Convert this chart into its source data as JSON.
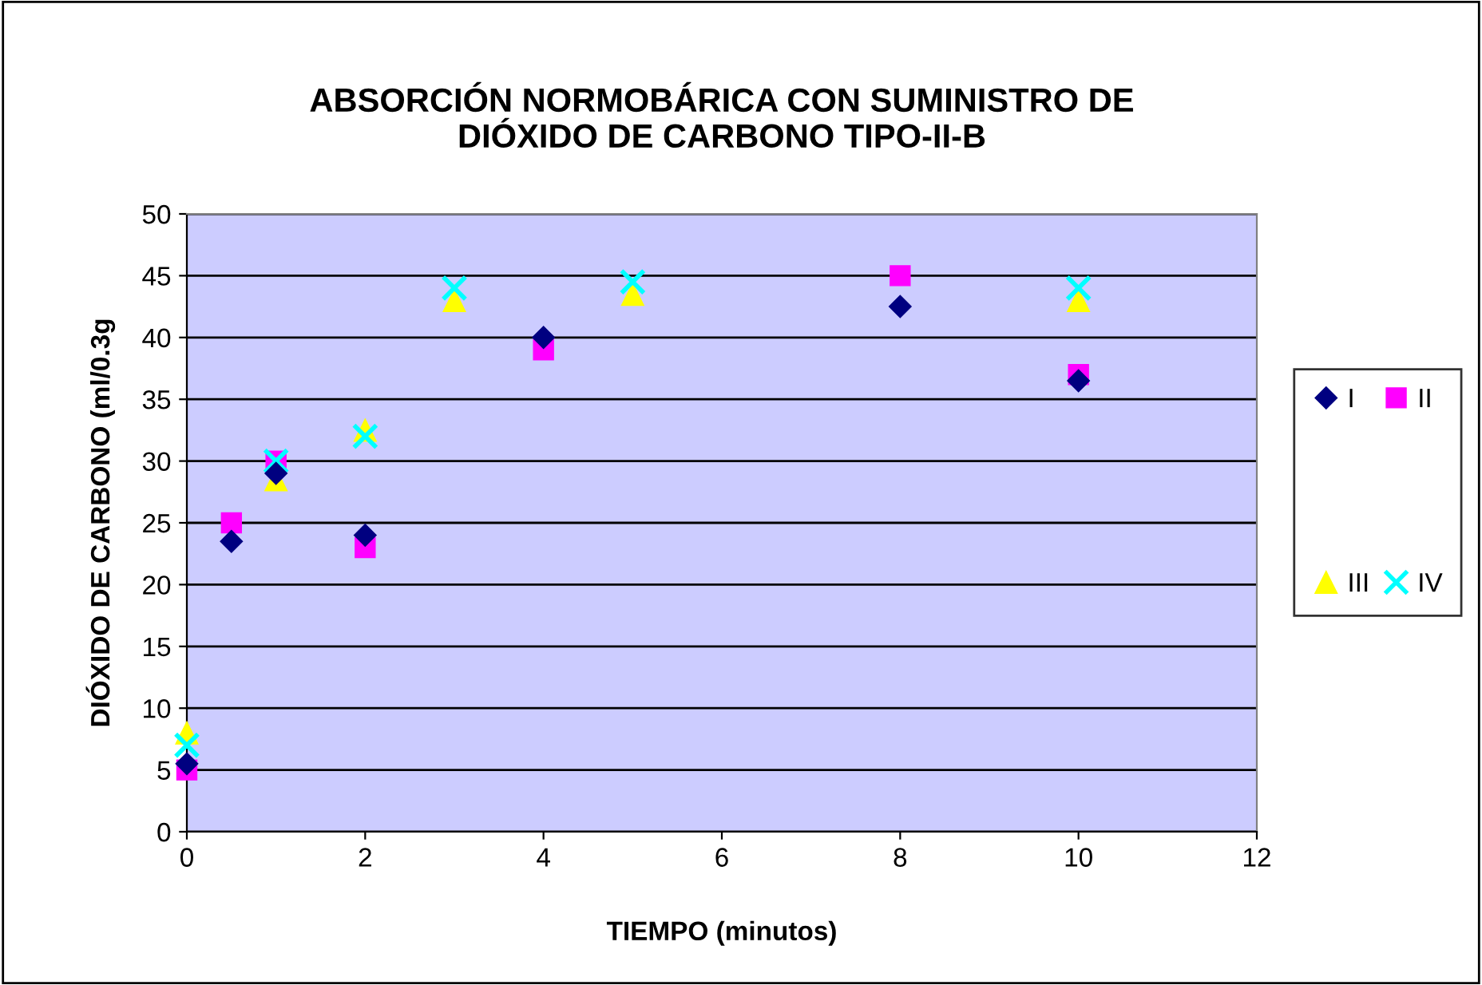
{
  "chart_data": {
    "type": "scatter",
    "title": "ABSORCIÓN NORMOBÁRICA CON SUMINISTRO DE\nDIÓXIDO DE CARBONO TIPO-II-B",
    "xlabel": "TIEMPO (minutos)",
    "ylabel": "DIÓXIDO DE CARBONO (ml/0.3g",
    "xlim": [
      0,
      12
    ],
    "xticks": [
      0,
      2,
      4,
      6,
      8,
      10,
      12
    ],
    "ylim": [
      0,
      50
    ],
    "yticks": [
      0,
      5,
      10,
      15,
      20,
      25,
      30,
      35,
      40,
      45,
      50
    ],
    "grid": "y",
    "legend": "right",
    "series": [
      {
        "name": "I",
        "color": "#000080",
        "marker": "diamond",
        "x": [
          0,
          0.5,
          1,
          2,
          4,
          8,
          10
        ],
        "values": [
          5.5,
          23.5,
          29,
          24,
          40,
          42.5,
          36.5
        ]
      },
      {
        "name": "II",
        "color": "#ff00ff",
        "marker": "square",
        "x": [
          0,
          0.5,
          1,
          2,
          4,
          8,
          10
        ],
        "values": [
          5,
          25,
          30,
          23,
          39,
          45,
          37
        ]
      },
      {
        "name": "III",
        "color": "#ffff00",
        "marker": "triangle",
        "x": [
          0,
          1,
          2,
          3,
          5,
          10
        ],
        "values": [
          8,
          28.5,
          32.5,
          43,
          43.5,
          43
        ]
      },
      {
        "name": "IV",
        "color": "#00ffff",
        "marker": "cross",
        "x": [
          0,
          1,
          2,
          3,
          5,
          10
        ],
        "values": [
          7,
          30,
          32,
          44,
          44.5,
          44
        ]
      }
    ]
  }
}
